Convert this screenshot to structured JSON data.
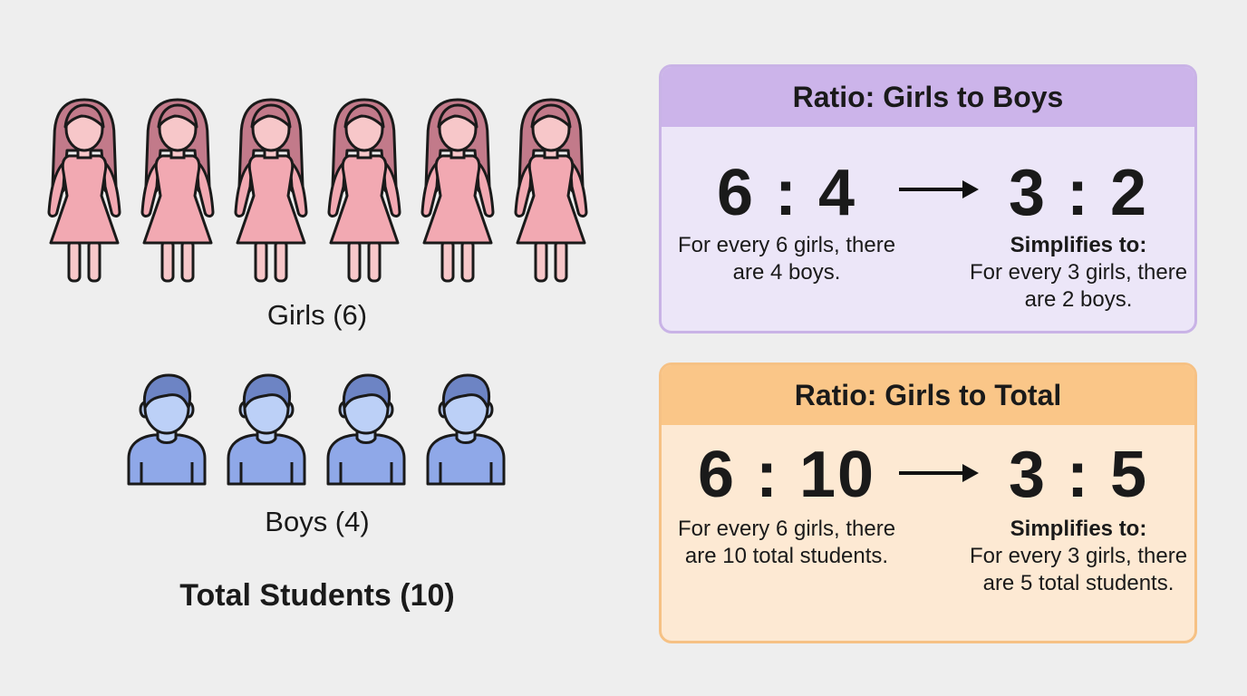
{
  "left": {
    "girls_count": 6,
    "boys_count": 4,
    "girls_label": "Girls (6)",
    "boys_label": "Boys (4)",
    "total_label": "Total Students (10)"
  },
  "cards": [
    {
      "title": "Ratio: Girls to Boys",
      "ratio": "6 : 4",
      "simplified": "3 : 2",
      "description": "For every 6 girls, there are 4 boys.",
      "simplifies_label": "Simplifies to:",
      "simplified_description": "For every 3 girls, there are 2 boys."
    },
    {
      "title": "Ratio: Girls to Total",
      "ratio": "6 : 10",
      "simplified": "3 : 5",
      "description": "For every 6 girls, there are 10 total students.",
      "simplifies_label": "Simplifies to:",
      "simplified_description": "For every 3 girls, there are 5 total students."
    }
  ],
  "colors": {
    "girl_hair": "#c27a8a",
    "girl_skin": "#f7c7c9",
    "girl_dress": "#f2a9b2",
    "boy_hair": "#6d84c4",
    "boy_skin": "#bcd0f7",
    "boy_shirt": "#8fa8e8",
    "purple_header": "#ccb4ea",
    "orange_header": "#fac688"
  }
}
